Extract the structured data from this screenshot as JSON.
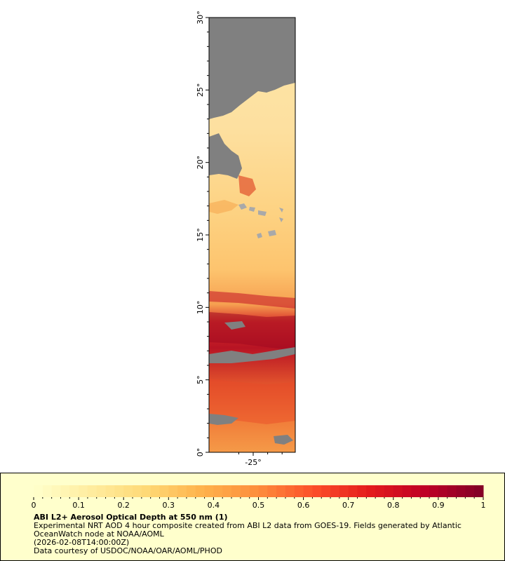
{
  "map": {
    "lat_ticks": [
      "0°",
      "5°",
      "10°",
      "15°",
      "20°",
      "25°",
      "30°"
    ],
    "lon_ticks": [
      "-25°"
    ],
    "colors": {
      "no_data": "#808080",
      "land": "#a9a9a9",
      "ocean_low": "#fee4a0",
      "ocean_mid": "#fdb45a",
      "ocean_high": "#c80f1e"
    }
  },
  "legend": {
    "ticks": [
      "0",
      "0.1",
      "0.2",
      "0.3",
      "0.4",
      "0.5",
      "0.6",
      "0.7",
      "0.8",
      "0.9",
      "1"
    ],
    "range": [
      0,
      1
    ],
    "colors": [
      "#ffffcc",
      "#ffeda0",
      "#fed976",
      "#feb24c",
      "#fd8d3c",
      "#fc4e2a",
      "#e31a1c",
      "#bd0026",
      "#800026"
    ],
    "title": "ABI L2+ Aerosol Optical Depth at 550 nm (1)",
    "description_line1": "Experimental NRT AOD 4 hour composite created from ABI L2 data from GOES-19. Fields generated by Atlantic",
    "description_line2": "OceanWatch node at NOAA/AOML",
    "timestamp": "(2026-02-08T14:00:00Z)",
    "credit": "Data courtesy of USDOC/NOAA/OAR/AOML/PHOD"
  }
}
